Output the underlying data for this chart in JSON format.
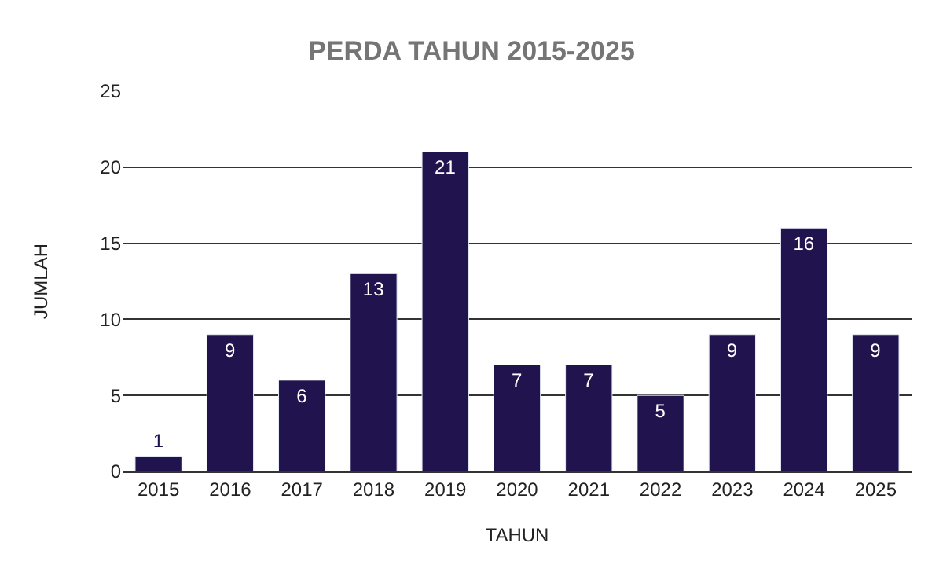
{
  "chart_data": {
    "type": "bar",
    "title": "PERDA TAHUN 2015-2025",
    "xlabel": "TAHUN",
    "ylabel": "JUMLAH",
    "categories": [
      "2015",
      "2016",
      "2017",
      "2018",
      "2019",
      "2020",
      "2021",
      "2022",
      "2023",
      "2024",
      "2025"
    ],
    "values": [
      1,
      9,
      6,
      13,
      21,
      7,
      7,
      5,
      9,
      16,
      9
    ],
    "color": "#21134d",
    "ylim": [
      0,
      25
    ],
    "yticks": [
      0,
      5,
      10,
      15,
      20,
      25
    ],
    "grid": "y",
    "data_labels": true
  }
}
